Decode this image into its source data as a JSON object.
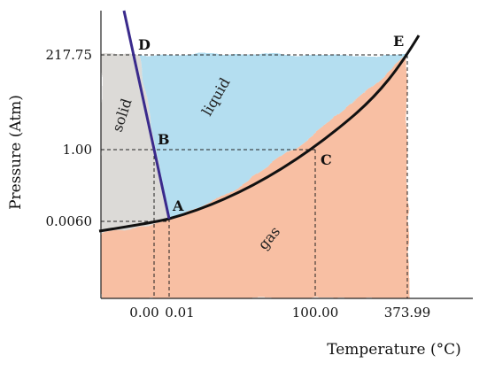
{
  "diagram": {
    "y_axis_title": "Pressure (Atm)",
    "x_axis_title": "Temperature (°C)",
    "pressure_ticks": [
      "217.75",
      "1.00",
      "0.0060"
    ],
    "temperature_ticks": [
      "0.00",
      "0.01",
      "100.00",
      "373.99"
    ],
    "points": {
      "A": "A",
      "B": "B",
      "C": "C",
      "D": "D",
      "E": "E"
    },
    "regions": {
      "solid": "solid",
      "liquid": "liquid",
      "gas": "gas"
    },
    "colors": {
      "solid": "#d9d6d3",
      "liquid": "#a8d9ee",
      "gas": "#f7b593",
      "fusion_line": "#3a2a8c",
      "vapor_curve": "#111111",
      "axis": "#222222"
    }
  }
}
